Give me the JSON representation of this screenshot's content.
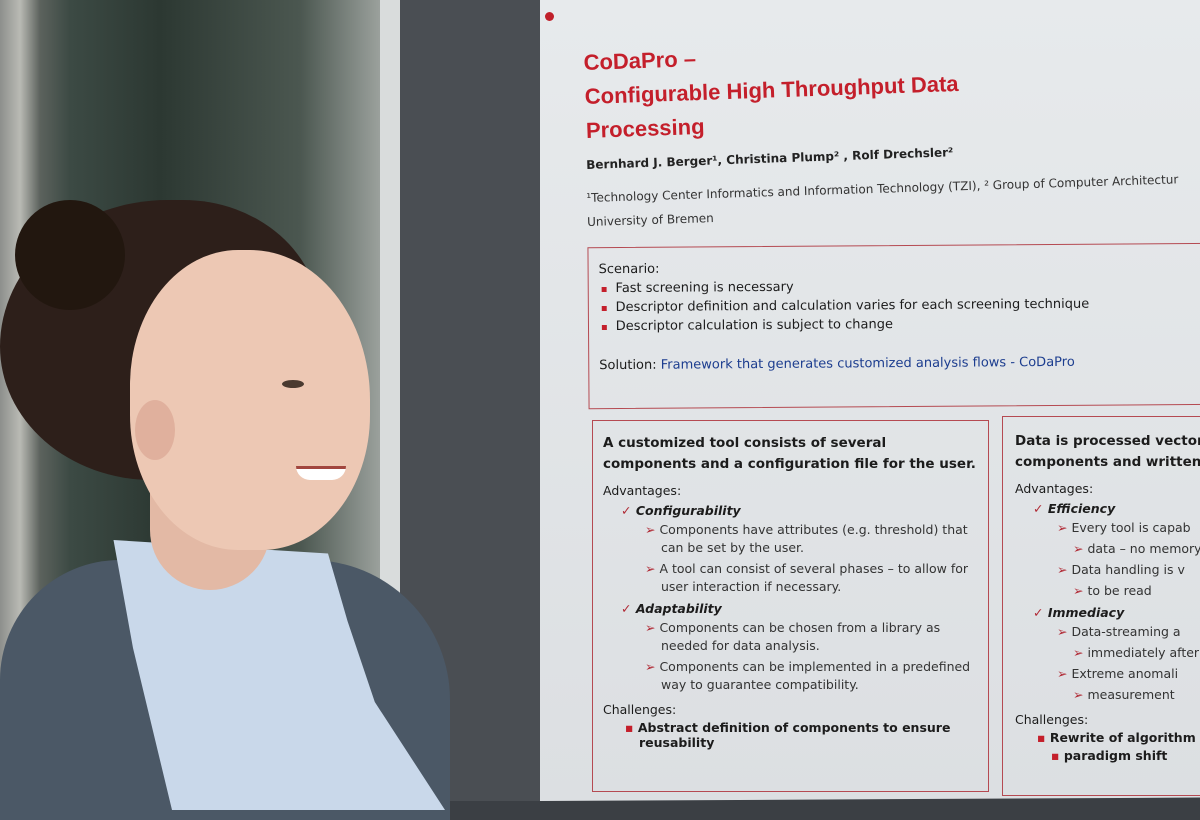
{
  "poster": {
    "title_lines": [
      "CoDaPro –",
      "Configurable High Throughput Data",
      "Processing"
    ],
    "authors": "Bernhard J. Berger¹, Christina Plump² , Rolf Drechsler²",
    "affiliation": "¹Technology Center Informatics and Information Technology (TZI), ² Group of Computer Architectur",
    "university": "University of Bremen",
    "scenario": {
      "heading": "Scenario:",
      "items": [
        "Fast screening is necessary",
        "Descriptor definition and calculation varies for each screening technique",
        "Descriptor calculation is subject to change"
      ],
      "solution_label": "Solution:",
      "solution_text": "Framework that generates customized analysis flows - CoDaPro"
    },
    "box_left": {
      "heading": "A customized tool consists of several components and a configuration file for the user.",
      "advantages_label": "Advantages:",
      "adv1": "Configurability",
      "adv1_points": [
        "Components have attributes (e.g. threshold) that can be set by the user.",
        "A tool can consist of several phases – to allow for user interaction if necessary."
      ],
      "adv2": "Adaptability",
      "adv2_points": [
        "Components can be chosen from a library as needed for data analysis.",
        "Components can be implemented in a predefined way to guarantee compatibility."
      ],
      "challenges_label": "Challenges:",
      "challenge": "Abstract definition of components to ensure reusability"
    },
    "box_right": {
      "heading_lines": [
        "Data is processed vector",
        "components and written"
      ],
      "advantages_label": "Advantages:",
      "adv1": "Efficiency",
      "adv1_points": [
        "Every tool is capab",
        "data – no memory",
        "Data handling is v",
        "to be read"
      ],
      "adv2": "Immediacy",
      "adv2_points": [
        "Data-streaming a",
        "immediately after",
        "Extreme anomali",
        "measurement"
      ],
      "challenges_label": "Challenges:",
      "challenge_lines": [
        "Rewrite of algorithm",
        "paradigm shift"
      ]
    }
  },
  "colors": {
    "accent": "#c41f2b",
    "solution": "#1c3d8f"
  }
}
